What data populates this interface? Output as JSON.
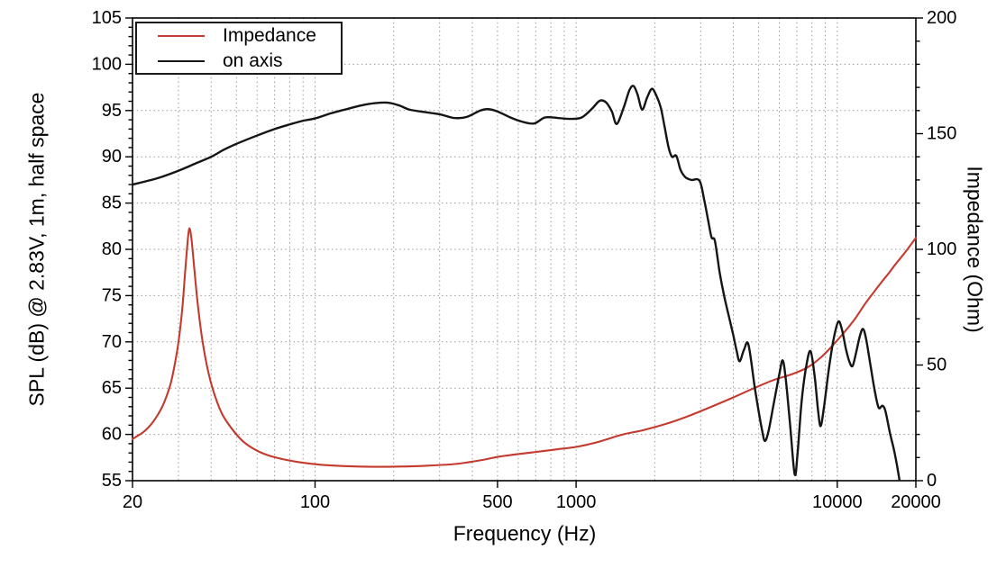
{
  "chart_data": {
    "type": "line",
    "title": "",
    "x_axis": {
      "label": "Frequency (Hz)",
      "scale": "log",
      "min": 20,
      "max": 20000,
      "major_ticks": [
        20,
        100,
        500,
        1000,
        10000,
        20000
      ],
      "gridlines": [
        30,
        40,
        50,
        60,
        70,
        80,
        90,
        100,
        200,
        300,
        400,
        500,
        600,
        700,
        800,
        900,
        1000,
        2000,
        3000,
        4000,
        5000,
        6000,
        7000,
        8000,
        9000,
        10000
      ]
    },
    "y_left": {
      "label": "SPL (dB) @ 2.83V, 1m, half space",
      "min": 55,
      "max": 105,
      "tick_values": [
        55,
        60,
        65,
        70,
        75,
        80,
        85,
        90,
        95,
        100,
        105
      ],
      "minor_tick_step": 1,
      "gridlines": [
        60,
        65,
        70,
        75,
        80,
        85,
        90,
        95,
        100
      ]
    },
    "y_right": {
      "label": "Impedance (Ohm)",
      "min": 0,
      "max": 200,
      "tick_values": [
        0,
        50,
        100,
        150,
        200
      ],
      "minor_tick_step": 10
    },
    "legend": {
      "position": "top-left-inside",
      "items": [
        {
          "label": "Impedance",
          "color": "#c43a2e"
        },
        {
          "label": "on axis",
          "color": "#151515"
        }
      ]
    },
    "grid_color": "#999999",
    "axis_color": "#000000",
    "series": [
      {
        "name": "Impedance",
        "axis": "right",
        "unit": "Ohm",
        "color": "#c43a2e",
        "width": 2.1,
        "points": [
          [
            20,
            18
          ],
          [
            21,
            19.5
          ],
          [
            22,
            21
          ],
          [
            23,
            23
          ],
          [
            24,
            25.5
          ],
          [
            25,
            28.5
          ],
          [
            26,
            32
          ],
          [
            27,
            36.5
          ],
          [
            28,
            42
          ],
          [
            29,
            50
          ],
          [
            30,
            60
          ],
          [
            31,
            74
          ],
          [
            31.8,
            90
          ],
          [
            32.5,
            103
          ],
          [
            33,
            109
          ],
          [
            33.6,
            105
          ],
          [
            34.4,
            93
          ],
          [
            35.5,
            77
          ],
          [
            37,
            61
          ],
          [
            39,
            47
          ],
          [
            41,
            38
          ],
          [
            44,
            29
          ],
          [
            48,
            22.5
          ],
          [
            53,
            17
          ],
          [
            59,
            13.4
          ],
          [
            66,
            11
          ],
          [
            76,
            9.2
          ],
          [
            88,
            7.9
          ],
          [
            105,
            6.9
          ],
          [
            130,
            6.3
          ],
          [
            165,
            6.0
          ],
          [
            210,
            6.1
          ],
          [
            270,
            6.5
          ],
          [
            350,
            7.3
          ],
          [
            440,
            9
          ],
          [
            500,
            10.3
          ],
          [
            580,
            11.3
          ],
          [
            700,
            12.4
          ],
          [
            850,
            13.6
          ],
          [
            1000,
            14.6
          ],
          [
            1200,
            16.6
          ],
          [
            1500,
            19.9
          ],
          [
            1800,
            21.8
          ],
          [
            2200,
            24.5
          ],
          [
            2700,
            28
          ],
          [
            3300,
            32
          ],
          [
            4000,
            36
          ],
          [
            4800,
            40
          ],
          [
            5700,
            43.5
          ],
          [
            6700,
            46
          ],
          [
            7700,
            49
          ],
          [
            8700,
            53.5
          ],
          [
            9700,
            59
          ],
          [
            10700,
            64.5
          ],
          [
            11700,
            70
          ],
          [
            12700,
            76
          ],
          [
            13700,
            81
          ],
          [
            14700,
            85.5
          ],
          [
            15700,
            89.5
          ],
          [
            16700,
            93.5
          ],
          [
            17700,
            97
          ],
          [
            18700,
            100.5
          ],
          [
            20000,
            105
          ]
        ]
      },
      {
        "name": "on axis",
        "axis": "left",
        "unit": "dB",
        "color": "#151515",
        "width": 2.4,
        "points": [
          [
            20,
            87.0
          ],
          [
            25,
            87.7
          ],
          [
            30,
            88.5
          ],
          [
            35,
            89.3
          ],
          [
            40,
            90.0
          ],
          [
            45,
            90.8
          ],
          [
            50,
            91.4
          ],
          [
            60,
            92.3
          ],
          [
            70,
            93.0
          ],
          [
            80,
            93.5
          ],
          [
            90,
            93.9
          ],
          [
            100,
            94.15
          ],
          [
            115,
            94.7
          ],
          [
            130,
            95.1
          ],
          [
            150,
            95.55
          ],
          [
            170,
            95.8
          ],
          [
            190,
            95.85
          ],
          [
            210,
            95.55
          ],
          [
            230,
            95.1
          ],
          [
            260,
            94.85
          ],
          [
            300,
            94.6
          ],
          [
            340,
            94.2
          ],
          [
            380,
            94.3
          ],
          [
            430,
            95.0
          ],
          [
            460,
            95.15
          ],
          [
            500,
            94.9
          ],
          [
            560,
            94.25
          ],
          [
            620,
            93.8
          ],
          [
            690,
            93.6
          ],
          [
            760,
            94.25
          ],
          [
            850,
            94.2
          ],
          [
            950,
            94.1
          ],
          [
            1050,
            94.25
          ],
          [
            1150,
            95.2
          ],
          [
            1230,
            96.05
          ],
          [
            1300,
            95.9
          ],
          [
            1370,
            94.9
          ],
          [
            1430,
            93.55
          ],
          [
            1520,
            95.3
          ],
          [
            1600,
            97.2
          ],
          [
            1660,
            97.65
          ],
          [
            1720,
            96.7
          ],
          [
            1790,
            95.1
          ],
          [
            1870,
            96.4
          ],
          [
            1950,
            97.35
          ],
          [
            2030,
            96.6
          ],
          [
            2110,
            95.3
          ],
          [
            2180,
            93.3
          ],
          [
            2260,
            91.0
          ],
          [
            2330,
            90.0
          ],
          [
            2420,
            90.1
          ],
          [
            2510,
            88.6
          ],
          [
            2620,
            87.8
          ],
          [
            2760,
            87.5
          ],
          [
            2970,
            87.4
          ],
          [
            3100,
            85.2
          ],
          [
            3200,
            83.2
          ],
          [
            3300,
            81.3
          ],
          [
            3400,
            80.9
          ],
          [
            3550,
            77.4
          ],
          [
            3700,
            74.8
          ],
          [
            3850,
            72.7
          ],
          [
            4000,
            70.7
          ],
          [
            4120,
            69.0
          ],
          [
            4230,
            67.9
          ],
          [
            4400,
            69.2
          ],
          [
            4570,
            69.7
          ],
          [
            4830,
            65.1
          ],
          [
            5000,
            62.5
          ],
          [
            5150,
            60.5
          ],
          [
            5280,
            59.3
          ],
          [
            5450,
            60.3
          ],
          [
            5700,
            63.2
          ],
          [
            6000,
            66.5
          ],
          [
            6180,
            68.0
          ],
          [
            6350,
            66.0
          ],
          [
            6600,
            61.0
          ],
          [
            6870,
            55.7
          ],
          [
            7050,
            58.0
          ],
          [
            7300,
            63.5
          ],
          [
            7600,
            67.3
          ],
          [
            7900,
            69.0
          ],
          [
            8200,
            66.2
          ],
          [
            8450,
            62.5
          ],
          [
            8640,
            60.9
          ],
          [
            8900,
            63.0
          ],
          [
            9300,
            67.2
          ],
          [
            9700,
            70.4
          ],
          [
            10100,
            72.2
          ],
          [
            10450,
            71.2
          ],
          [
            10800,
            69.2
          ],
          [
            11150,
            67.8
          ],
          [
            11450,
            67.4
          ],
          [
            11800,
            68.8
          ],
          [
            12200,
            70.6
          ],
          [
            12550,
            71.4
          ],
          [
            12900,
            70.3
          ],
          [
            13400,
            67.5
          ],
          [
            13900,
            64.8
          ],
          [
            14400,
            62.9
          ],
          [
            14900,
            63.1
          ],
          [
            15300,
            62.5
          ],
          [
            15900,
            60.2
          ],
          [
            16500,
            58.3
          ],
          [
            16900,
            56.8
          ],
          [
            17300,
            55.1
          ]
        ]
      }
    ]
  }
}
